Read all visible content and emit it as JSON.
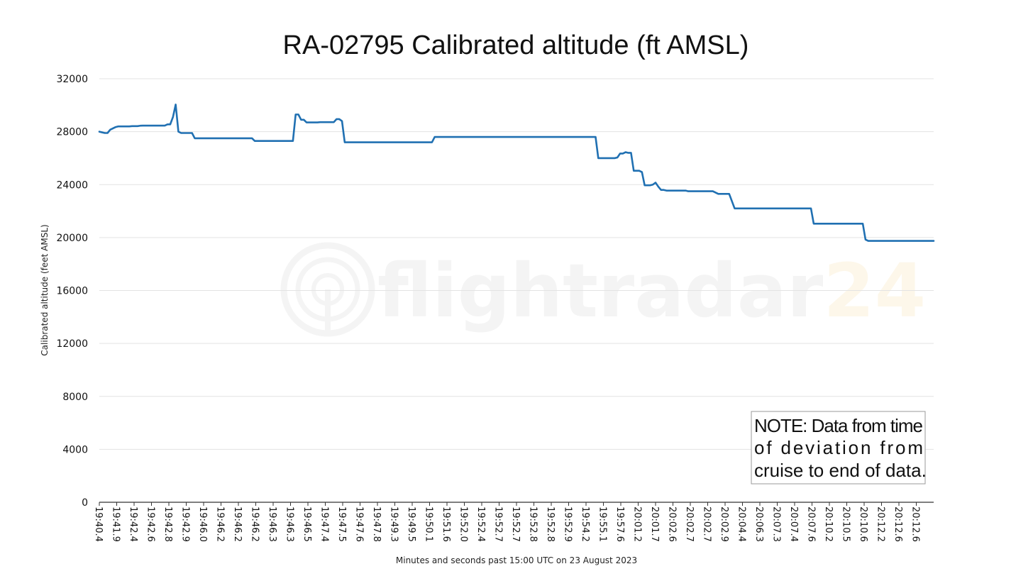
{
  "colors": {
    "series": "#2070b2",
    "watermark_gray": "#f4f4f4",
    "watermark_accent": "#fdf7ea"
  },
  "watermark": {
    "icon": "radar-logo-icon",
    "word_main": "flightradar",
    "word_accent": "24"
  },
  "chart_data": {
    "type": "line",
    "title": "RA-02795 Calibrated altitude (ft AMSL)",
    "xlabel": "Minutes and seconds past 15:00 UTC on 23 August 2023",
    "ylabel": "Calibrated altitude (feet AMSL)",
    "ylim": [
      0,
      32000
    ],
    "yticks": [
      0,
      4000,
      8000,
      12000,
      16000,
      20000,
      24000,
      28000,
      32000
    ],
    "grid": true,
    "legend": "none",
    "x_tick_labels": [
      "19:40.4",
      "19:41.9",
      "19:42.4",
      "19:42.6",
      "19:42.8",
      "19:42.9",
      "19:46.0",
      "19:46.2",
      "19:46.2",
      "19:46.2",
      "19:46.3",
      "19:46.3",
      "19:46.5",
      "19:47.4",
      "19:47.5",
      "19:47.6",
      "19:47.8",
      "19:49.3",
      "19:49.5",
      "19:50.1",
      "19:51.6",
      "19:52.0",
      "19:52.4",
      "19:52.7",
      "19:52.7",
      "19:52.8",
      "19:52.8",
      "19:52.9",
      "19:54.2",
      "19:55.1",
      "19:57.6",
      "20:01.2",
      "20:01.7",
      "20:02.6",
      "20:02.7",
      "20:02.7",
      "20:02.9",
      "20:04.4",
      "20:06.3",
      "20:07.3",
      "20:07.4",
      "20:07.6",
      "20:10.2",
      "20:10.5",
      "20:10.6",
      "20:12.2",
      "20:12.6",
      "20:12.6"
    ],
    "series": [
      {
        "values": [
          28000,
          27950,
          27900,
          27900,
          28150,
          28250,
          28350,
          28400,
          28400,
          28400,
          28400,
          28400,
          28420,
          28420,
          28420,
          28450,
          28460,
          28460,
          28460,
          28460,
          28460,
          28460,
          28460,
          28460,
          28460,
          28550,
          28550,
          29100,
          30050,
          28000,
          27900,
          27900,
          27900,
          27900,
          27900,
          27500,
          27500,
          27500,
          27500,
          27500,
          27500,
          27500,
          27500,
          27500,
          27500,
          27500,
          27500,
          27500,
          27500,
          27500,
          27500,
          27500,
          27500,
          27500,
          27500,
          27500,
          27500,
          27300,
          27300,
          27300,
          27300,
          27300,
          27300,
          27300,
          27300,
          27300,
          27300,
          27300,
          27300,
          27300,
          27300,
          27300,
          29300,
          29300,
          28900,
          28900,
          28700,
          28700,
          28700,
          28700,
          28700,
          28720,
          28720,
          28720,
          28720,
          28720,
          28720,
          28950,
          28950,
          28800,
          27200,
          27200,
          27200,
          27200,
          27200,
          27200,
          27200,
          27200,
          27200,
          27200,
          27200,
          27200,
          27200,
          27200,
          27200,
          27200,
          27200,
          27200,
          27200,
          27200,
          27200,
          27200,
          27200,
          27200,
          27200,
          27200,
          27200,
          27200,
          27200,
          27200,
          27200,
          27200,
          27200,
          27600,
          27600,
          27600,
          27600,
          27600,
          27600,
          27600,
          27600,
          27600,
          27600,
          27600,
          27600,
          27600,
          27600,
          27600,
          27600,
          27600,
          27600,
          27600,
          27600,
          27600,
          27600,
          27600,
          27600,
          27600,
          27600,
          27600,
          27600,
          27600,
          27600,
          27600,
          27600,
          27600,
          27600,
          27600,
          27600,
          27600,
          27600,
          27600,
          27600,
          27600,
          27600,
          27600,
          27600,
          27600,
          27600,
          27600,
          27600,
          27600,
          27600,
          27600,
          27600,
          27600,
          27600,
          27600,
          27600,
          27600,
          27600,
          27600,
          27600,
          26000,
          26000,
          26000,
          26000,
          26000,
          26000,
          26000,
          26050,
          26350,
          26350,
          26450,
          26400,
          26400,
          25050,
          25050,
          25050,
          24950,
          23950,
          23950,
          23950,
          24000,
          24150,
          23850,
          23600,
          23600,
          23550,
          23550,
          23550,
          23550,
          23550,
          23550,
          23550,
          23550,
          23500,
          23500,
          23500,
          23500,
          23500,
          23500,
          23500,
          23500,
          23500,
          23500,
          23400,
          23300,
          23300,
          23300,
          23300,
          23300,
          22750,
          22200,
          22200,
          22200,
          22200,
          22200,
          22200,
          22200,
          22200,
          22200,
          22200,
          22200,
          22200,
          22200,
          22200,
          22200,
          22200,
          22200,
          22200,
          22200,
          22200,
          22200,
          22200,
          22200,
          22200,
          22200,
          22200,
          22200,
          22200,
          22200,
          21050,
          21050,
          21050,
          21050,
          21050,
          21050,
          21050,
          21050,
          21050,
          21050,
          21050,
          21050,
          21050,
          21050,
          21050,
          21050,
          21050,
          21050,
          21050,
          19850,
          19750,
          19750,
          19750,
          19750,
          19750,
          19750,
          19750,
          19750,
          19750,
          19750,
          19750,
          19750,
          19750,
          19750,
          19750,
          19750,
          19750,
          19750,
          19750,
          19750,
          19750,
          19750,
          19750,
          19750,
          19750
        ]
      }
    ],
    "annotation": {
      "lines": [
        "NOTE: Data from time",
        "of deviation from",
        "cruise to end of data."
      ]
    }
  }
}
